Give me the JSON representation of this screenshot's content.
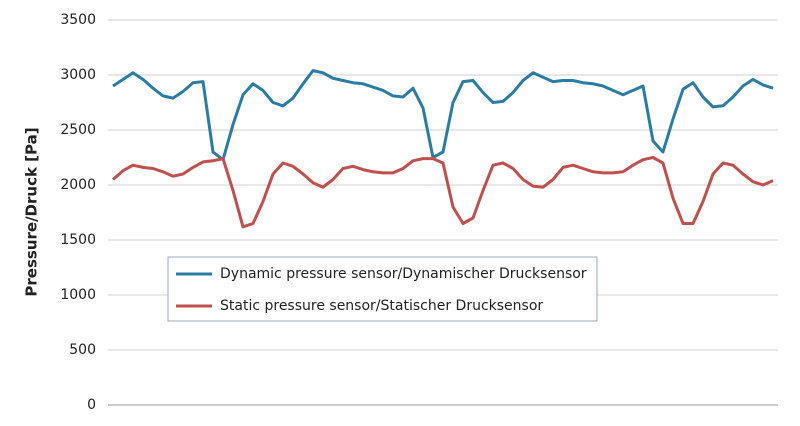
{
  "chart_data": {
    "type": "line",
    "y_label": "Pressure/Druck [Pa]",
    "ylim": [
      0,
      3500
    ],
    "yticks": [
      0,
      500,
      1000,
      1500,
      2000,
      2500,
      3000,
      3500
    ],
    "grid": true,
    "legend": "inside",
    "series": [
      {
        "name": "Dynamic pressure sensor/Dynamischer Drucksensor",
        "color": "#2b7ca3",
        "values": [
          2900,
          2960,
          3020,
          2960,
          2880,
          2810,
          2790,
          2850,
          2930,
          2940,
          2300,
          2230,
          2550,
          2820,
          2920,
          2860,
          2750,
          2720,
          2790,
          2920,
          3040,
          3020,
          2970,
          2950,
          2930,
          2920,
          2890,
          2860,
          2810,
          2800,
          2880,
          2700,
          2250,
          2300,
          2750,
          2940,
          2950,
          2840,
          2750,
          2760,
          2840,
          2950,
          3020,
          2980,
          2940,
          2950,
          2950,
          2930,
          2920,
          2900,
          2860,
          2820,
          2860,
          2900,
          2400,
          2300,
          2600,
          2870,
          2930,
          2800,
          2710,
          2720,
          2800,
          2900,
          2960,
          2910,
          2880
        ]
      },
      {
        "name": "Static pressure sensor/Statischer Drucksensor",
        "color": "#c0504d",
        "values": [
          2050,
          2130,
          2180,
          2160,
          2150,
          2120,
          2080,
          2100,
          2160,
          2210,
          2220,
          2240,
          1950,
          1620,
          1650,
          1850,
          2100,
          2200,
          2170,
          2100,
          2020,
          1980,
          2050,
          2150,
          2170,
          2140,
          2120,
          2110,
          2110,
          2150,
          2220,
          2240,
          2240,
          2200,
          1800,
          1650,
          1700,
          1950,
          2180,
          2200,
          2150,
          2050,
          1990,
          1980,
          2050,
          2160,
          2180,
          2150,
          2120,
          2110,
          2110,
          2120,
          2180,
          2230,
          2250,
          2200,
          1880,
          1650,
          1650,
          1850,
          2100,
          2200,
          2180,
          2100,
          2030,
          2000,
          2040
        ]
      }
    ]
  }
}
